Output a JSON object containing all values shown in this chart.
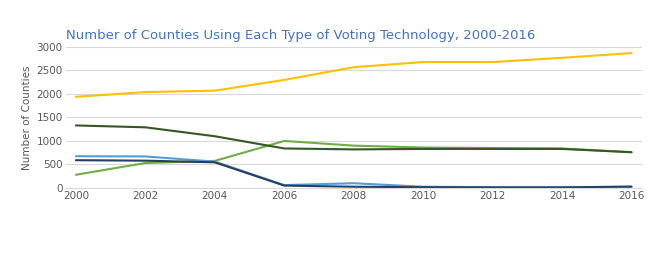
{
  "title": "Number of Counties Using Each Type of Voting Technology, 2000-2016",
  "ylabel": "Number of Counties",
  "years": [
    2000,
    2002,
    2004,
    2006,
    2008,
    2010,
    2012,
    2014,
    2016
  ],
  "series": {
    "Electronic": {
      "values": [
        280,
        530,
        575,
        1000,
        900,
        860,
        850,
        840,
        760
      ],
      "color": "#70ad47",
      "linewidth": 1.5
    },
    "Lever": {
      "values": [
        675,
        670,
        560,
        60,
        100,
        25,
        15,
        15,
        15
      ],
      "color": "#5b9bd5",
      "linewidth": 1.5
    },
    "Optical scan": {
      "values": [
        1940,
        2040,
        2070,
        2300,
        2570,
        2680,
        2680,
        2770,
        2870
      ],
      "color": "#ffc000",
      "linewidth": 1.5
    },
    "Paper ballot": {
      "values": [
        1330,
        1290,
        1100,
        840,
        820,
        830,
        830,
        830,
        760
      ],
      "color": "#375623",
      "linewidth": 1.5
    },
    "Punchcard": {
      "values": [
        590,
        580,
        545,
        50,
        25,
        15,
        10,
        10,
        30
      ],
      "color": "#243f60",
      "linewidth": 1.5
    }
  },
  "ylim": [
    0,
    3000
  ],
  "yticks": [
    0,
    500,
    1000,
    1500,
    2000,
    2500,
    3000
  ],
  "title_color": "#4472c4",
  "title_fontsize": 9.5,
  "ylabel_fontsize": 7.5,
  "tick_fontsize": 7.5,
  "axis_label_color": "#595959",
  "tick_label_color": "#595959",
  "legend_label_color": "#595959",
  "legend_fontsize": 7.5,
  "background_color": "#ffffff",
  "grid_color": "#d9d9d9"
}
